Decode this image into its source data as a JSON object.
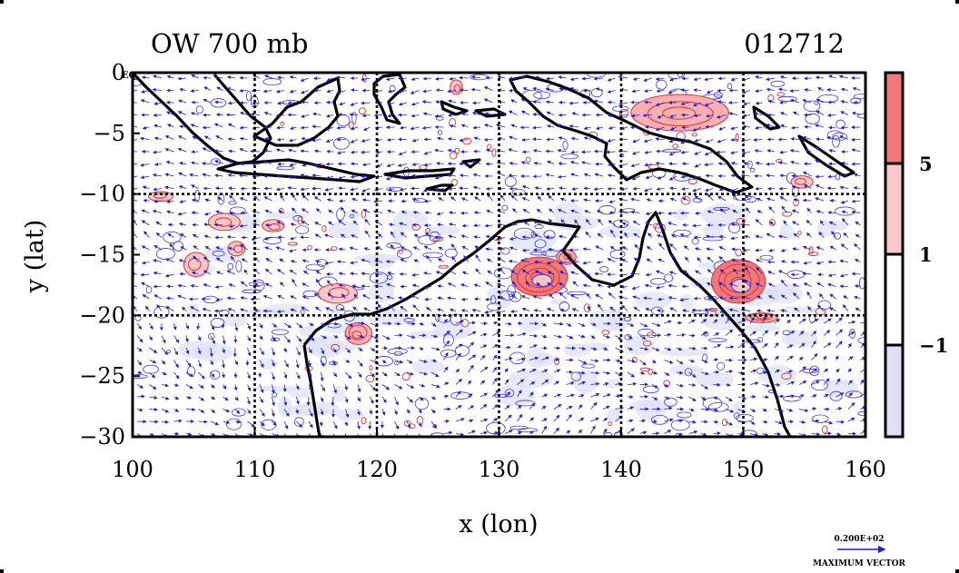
{
  "chart_data": {
    "type": "heatmap",
    "title_left": "OW 700 mb",
    "title_right": "012712",
    "xlabel": "x (lon)",
    "ylabel": "y (lat)",
    "xlim": [
      100,
      160
    ],
    "ylim": [
      -30,
      0
    ],
    "x_ticks": [
      100,
      110,
      120,
      130,
      140,
      150,
      160
    ],
    "y_ticks": [
      0,
      -5,
      -10,
      -15,
      -20,
      -25,
      -30
    ],
    "y_tick_labels": [
      "0",
      "−5",
      "−10",
      "−15",
      "−20",
      "−25",
      "−30"
    ],
    "zero_lat_suffix": "EQ",
    "grid": true,
    "grid_lons": [
      110,
      120,
      130,
      140,
      150
    ],
    "grid_lats": [
      -10,
      -20
    ],
    "colorbar": {
      "levels": [
        -1,
        1,
        5
      ],
      "labels": [
        "−1",
        "1",
        "5"
      ],
      "colors": [
        "#dde1f5",
        "#ffffff",
        "#f8c8c8",
        "#f07878"
      ]
    },
    "colors": {
      "vectors": "#1c1cdc",
      "negative_contours": "#3a3ae0",
      "positive_contours": "#e03030",
      "strong_positive_fill": "#f07878",
      "negative_fill": "#dde1f5",
      "coastline": "#000000"
    },
    "reference_vector": {
      "value": "0.200E+02",
      "label": "MAXIMUM VECTOR"
    },
    "features": [
      {
        "lon": 133.3,
        "lat": -16.8,
        "rx": 2.3,
        "ry": 1.6,
        "level": "strong"
      },
      {
        "lon": 149.6,
        "lat": -17.2,
        "rx": 2.2,
        "ry": 1.8,
        "level": "strong"
      },
      {
        "lon": 105.2,
        "lat": -15.8,
        "rx": 1.0,
        "ry": 1.0,
        "level": "weak"
      },
      {
        "lon": 107.5,
        "lat": -12.3,
        "rx": 1.3,
        "ry": 0.7,
        "level": "weak"
      },
      {
        "lon": 108.5,
        "lat": -14.5,
        "rx": 0.7,
        "ry": 0.6,
        "level": "weak"
      },
      {
        "lon": 102.3,
        "lat": -10.2,
        "rx": 1.0,
        "ry": 0.4,
        "level": "weak"
      },
      {
        "lon": 111.5,
        "lat": -12.6,
        "rx": 0.9,
        "ry": 0.5,
        "level": "weak"
      },
      {
        "lon": 116.8,
        "lat": -18.2,
        "rx": 1.6,
        "ry": 0.8,
        "level": "weak"
      },
      {
        "lon": 118.5,
        "lat": -21.5,
        "rx": 1.1,
        "ry": 0.9,
        "level": "medium"
      },
      {
        "lon": 144.8,
        "lat": -3.3,
        "rx": 4.0,
        "ry": 1.5,
        "level": "medium"
      },
      {
        "lon": 154.8,
        "lat": -9.0,
        "rx": 0.9,
        "ry": 0.5,
        "level": "weak"
      },
      {
        "lon": 126.5,
        "lat": -1.2,
        "rx": 0.5,
        "ry": 0.6,
        "level": "weak"
      },
      {
        "lon": 135.5,
        "lat": -15.2,
        "rx": 0.8,
        "ry": 0.6,
        "level": "medium"
      },
      {
        "lon": 151.5,
        "lat": -20.2,
        "rx": 1.3,
        "ry": 0.4,
        "level": "medium"
      }
    ]
  }
}
